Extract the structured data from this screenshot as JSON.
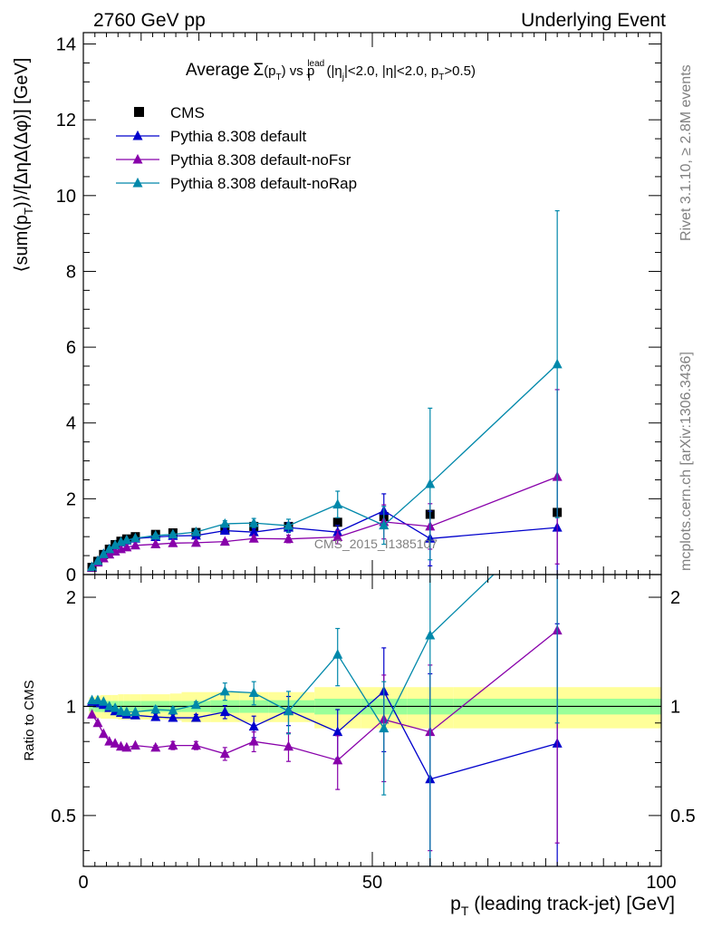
{
  "header": {
    "energy": "2760 GeV pp",
    "process": "Underlying Event"
  },
  "side_labels": {
    "rivet": "Rivet 3.1.10, ≥ 2.8M events",
    "mcplots": "mcplots.cern.ch [arXiv:1306.3436]"
  },
  "watermark": "CMS_2015_I1385107",
  "chart_data": {
    "type": "scatter",
    "title_parts": {
      "average": "Average",
      "sigma": "Σ",
      "p": "(p",
      "t_sub": "T",
      "close": ")",
      "vs": " vs p",
      "lead_sup": "lead",
      "t_sub2": "T",
      "cuts_a": " (|η",
      "j_sub": "j",
      "cuts_b": "|<2.0, |η|<2.0, p",
      "t_sub3": "T",
      "cuts_c": ">0.5)"
    },
    "ylabel_parts": {
      "a": "⟨sum(p",
      "t_sub": "T",
      "b": ")⟩/[Δ",
      "c": "ηΔ(Δφ)] [GeV]"
    },
    "ratio_ylabel": "Ratio to CMS",
    "xlabel_parts": {
      "p": "p",
      "t_sub": "T",
      "rest": " (leading track-jet) [GeV]"
    },
    "xlim": [
      0,
      100
    ],
    "ylim": [
      0,
      14.3
    ],
    "ratio_ylim": [
      0.36,
      2.3
    ],
    "x_ticks": [
      "0",
      "50",
      "100"
    ],
    "y_ticks": [
      "0",
      "2",
      "4",
      "6",
      "8",
      "10",
      "12",
      "14"
    ],
    "ratio_ticks": [
      "0.5",
      "1",
      "2"
    ],
    "legend_position": "top-left",
    "series": [
      {
        "name": "CMS",
        "marker": "square",
        "color": "#000000",
        "x": [
          1.5,
          2.5,
          3.5,
          4.5,
          5.5,
          6.5,
          7.5,
          9,
          12.5,
          15.5,
          19.5,
          24.5,
          29.5,
          35.5,
          44,
          52,
          60,
          82
        ],
        "y": [
          0.19,
          0.35,
          0.53,
          0.67,
          0.79,
          0.88,
          0.94,
          1.0,
          1.06,
          1.1,
          1.11,
          1.2,
          1.27,
          1.27,
          1.38,
          1.53,
          1.59,
          1.64
        ],
        "err": [
          0,
          0,
          0,
          0,
          0,
          0,
          0,
          0,
          0,
          0,
          0,
          0.03,
          0.03,
          0.05,
          0.05,
          0.07,
          0.08,
          0.08
        ]
      },
      {
        "name": "Pythia 8.308 default",
        "marker": "triangle",
        "color": "#0000cc",
        "x": [
          1.5,
          2.5,
          3.5,
          4.5,
          5.5,
          6.5,
          7.5,
          9,
          12.5,
          15.5,
          19.5,
          24.5,
          29.5,
          35.5,
          44,
          52,
          60,
          82
        ],
        "y": [
          0.195,
          0.36,
          0.54,
          0.67,
          0.77,
          0.85,
          0.9,
          0.95,
          0.99,
          1.02,
          1.03,
          1.16,
          1.12,
          1.24,
          1.12,
          1.68,
          0.95,
          1.24
        ],
        "err": [
          0,
          0,
          0,
          0,
          0,
          0,
          0,
          0,
          0.03,
          0.03,
          0.04,
          0.07,
          0.09,
          0.13,
          0.18,
          0.45,
          0.72,
          1.3
        ]
      },
      {
        "name": "Pythia 8.308 default-noFsr",
        "marker": "triangle",
        "color": "#8800aa",
        "x": [
          1.5,
          2.5,
          3.5,
          4.5,
          5.5,
          6.5,
          7.5,
          9,
          12.5,
          15.5,
          19.5,
          24.5,
          29.5,
          35.5,
          44,
          52,
          60,
          82
        ],
        "y": [
          0.18,
          0.32,
          0.43,
          0.53,
          0.61,
          0.67,
          0.72,
          0.77,
          0.8,
          0.83,
          0.84,
          0.87,
          0.95,
          0.94,
          0.99,
          1.39,
          1.27,
          2.58
        ],
        "err": [
          0,
          0,
          0,
          0,
          0,
          0,
          0,
          0,
          0.02,
          0.03,
          0.03,
          0.05,
          0.07,
          0.1,
          0.18,
          0.45,
          0.6,
          2.3
        ]
      },
      {
        "name": "Pythia 8.308 default-noRap",
        "marker": "triangle",
        "color": "#0088aa",
        "x": [
          1.5,
          2.5,
          3.5,
          4.5,
          5.5,
          6.5,
          7.5,
          9,
          12.5,
          15.5,
          19.5,
          24.5,
          29.5,
          35.5,
          44,
          52,
          60,
          82
        ],
        "y": [
          0.2,
          0.36,
          0.54,
          0.67,
          0.78,
          0.86,
          0.91,
          0.96,
          1.03,
          1.06,
          1.12,
          1.34,
          1.36,
          1.29,
          1.85,
          1.3,
          2.39,
          5.55
        ],
        "err": [
          0,
          0,
          0,
          0,
          0,
          0,
          0,
          0,
          0.03,
          0.04,
          0.04,
          0.08,
          0.12,
          0.17,
          0.35,
          0.5,
          2.0,
          4.05
        ]
      }
    ],
    "ratio_series": [
      {
        "name": "Pythia 8.308 default",
        "x": [
          1.5,
          2.5,
          3.5,
          4.5,
          5.5,
          6.5,
          7.5,
          9,
          12.5,
          15.5,
          19.5,
          24.5,
          29.5,
          35.5,
          44,
          52,
          60,
          82
        ],
        "y": [
          1.03,
          1.02,
          1.01,
          0.99,
          0.97,
          0.96,
          0.95,
          0.945,
          0.935,
          0.93,
          0.93,
          0.965,
          0.88,
          0.975,
          0.85,
          1.1,
          0.63,
          0.79
        ],
        "err": [
          0,
          0,
          0,
          0,
          0,
          0,
          0,
          0,
          0.02,
          0.02,
          0.02,
          0.04,
          0.06,
          0.09,
          0.13,
          0.35,
          0.6,
          0.9
        ]
      },
      {
        "name": "Pythia 8.308 default-noFsr",
        "x": [
          1.5,
          2.5,
          3.5,
          4.5,
          5.5,
          6.5,
          7.5,
          9,
          12.5,
          15.5,
          19.5,
          24.5,
          29.5,
          35.5,
          44,
          52,
          60,
          82
        ],
        "y": [
          0.95,
          0.9,
          0.84,
          0.8,
          0.79,
          0.775,
          0.77,
          0.78,
          0.77,
          0.78,
          0.78,
          0.74,
          0.8,
          0.775,
          0.71,
          0.92,
          0.85,
          1.62
        ],
        "err": [
          0,
          0,
          0,
          0,
          0,
          0,
          0,
          0,
          0.01,
          0.02,
          0.02,
          0.03,
          0.05,
          0.07,
          0.12,
          0.3,
          0.45,
          1.2
        ]
      },
      {
        "name": "Pythia 8.308 default-noRap",
        "x": [
          1.5,
          2.5,
          3.5,
          4.5,
          5.5,
          6.5,
          7.5,
          9,
          12.5,
          15.5,
          19.5,
          24.5,
          29.5,
          35.5,
          44,
          52,
          60,
          82
        ],
        "y": [
          1.04,
          1.04,
          1.03,
          1.0,
          0.99,
          0.97,
          0.965,
          0.965,
          0.98,
          0.975,
          1.01,
          1.1,
          1.09,
          0.97,
          1.39,
          0.87,
          1.57,
          3.4
        ],
        "err": [
          0,
          0,
          0,
          0,
          0,
          0,
          0,
          0,
          0.02,
          0.02,
          0.02,
          0.06,
          0.08,
          0.13,
          0.25,
          0.3,
          1.3,
          2.5
        ]
      }
    ],
    "ratio_bands": {
      "x_edges": [
        1,
        2,
        3,
        4,
        5,
        6,
        7,
        8,
        10,
        15,
        17,
        22,
        27,
        32,
        40,
        48,
        56,
        64,
        100
      ],
      "stat_halfwidth": [
        0.03,
        0.035,
        0.035,
        0.035,
        0.035,
        0.035,
        0.035,
        0.035,
        0.035,
        0.035,
        0.035,
        0.04,
        0.04,
        0.04,
        0.05,
        0.05,
        0.05,
        0.05
      ],
      "total_halfwidth": [
        0.06,
        0.07,
        0.075,
        0.075,
        0.075,
        0.08,
        0.08,
        0.08,
        0.08,
        0.085,
        0.095,
        0.095,
        0.095,
        0.095,
        0.13,
        0.13,
        0.13,
        0.13
      ],
      "stat_color": "#99ff99",
      "total_color": "#ffff99"
    }
  }
}
